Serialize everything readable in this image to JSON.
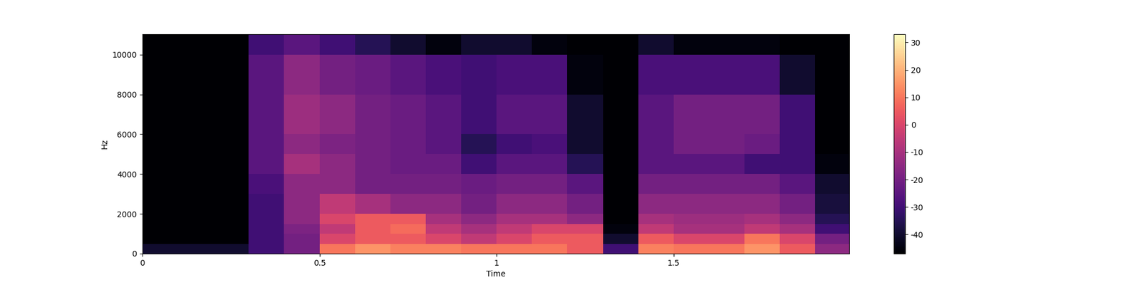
{
  "chart_data": {
    "type": "heatmap",
    "x_label": "Time",
    "y_label": "Hz",
    "xlim": [
      0,
      1.996
    ],
    "xticks": [
      0,
      0.5,
      1,
      1.5
    ],
    "ylim": [
      0,
      11025
    ],
    "yticks": [
      0,
      2000,
      4000,
      6000,
      8000,
      10000
    ],
    "time_edges": [
      0,
      0.1,
      0.2,
      0.3,
      0.4,
      0.5,
      0.6,
      0.7,
      0.8,
      0.9,
      1.0,
      1.1,
      1.2,
      1.3,
      1.4,
      1.5,
      1.6,
      1.7,
      1.8,
      1.9,
      1.996
    ],
    "freq_edges": [
      0,
      500,
      1000,
      1500,
      2000,
      3000,
      4000,
      5000,
      6000,
      8000,
      10000,
      11025
    ],
    "cells": [
      [
        -40,
        -40,
        -40,
        -30,
        -20,
        10,
        15,
        12,
        12,
        10,
        10,
        10,
        5,
        -30,
        12,
        10,
        10,
        15,
        5,
        -15
      ],
      [
        -47,
        -47,
        -47,
        -30,
        -20,
        0,
        5,
        5,
        0,
        -5,
        0,
        5,
        5,
        -40,
        5,
        0,
        0,
        10,
        0,
        -20
      ],
      [
        -47,
        -47,
        -47,
        -30,
        -18,
        -5,
        5,
        8,
        -5,
        -10,
        -5,
        0,
        0,
        -45,
        -5,
        -10,
        -10,
        -5,
        -10,
        -30
      ],
      [
        -47,
        -47,
        -47,
        -30,
        -15,
        0,
        5,
        5,
        -10,
        -15,
        -10,
        -10,
        -15,
        -47,
        -10,
        -12,
        -12,
        -10,
        -15,
        -35
      ],
      [
        -47,
        -47,
        -47,
        -30,
        -15,
        -5,
        -10,
        -15,
        -15,
        -20,
        -15,
        -15,
        -20,
        -47,
        -15,
        -15,
        -15,
        -15,
        -20,
        -38
      ],
      [
        -47,
        -47,
        -47,
        -28,
        -15,
        -15,
        -20,
        -20,
        -20,
        -22,
        -20,
        -20,
        -25,
        -47,
        -20,
        -20,
        -20,
        -20,
        -25,
        -40
      ],
      [
        -47,
        -47,
        -47,
        -25,
        -10,
        -15,
        -20,
        -22,
        -22,
        -30,
        -25,
        -25,
        -35,
        -47,
        -25,
        -25,
        -25,
        -30,
        -30,
        -45
      ],
      [
        -47,
        -47,
        -47,
        -25,
        -15,
        -18,
        -20,
        -22,
        -25,
        -35,
        -30,
        -28,
        -40,
        -47,
        -25,
        -20,
        -20,
        -22,
        -30,
        -47
      ],
      [
        -47,
        -47,
        -47,
        -25,
        -12,
        -15,
        -20,
        -22,
        -25,
        -30,
        -25,
        -25,
        -40,
        -47,
        -25,
        -20,
        -20,
        -20,
        -30,
        -47
      ],
      [
        -47,
        -47,
        -47,
        -25,
        -15,
        -20,
        -22,
        -25,
        -28,
        -30,
        -28,
        -28,
        -45,
        -47,
        -28,
        -28,
        -28,
        -28,
        -40,
        -47
      ],
      [
        -47,
        -47,
        -47,
        -30,
        -25,
        -30,
        -35,
        -40,
        -45,
        -40,
        -40,
        -45,
        -47,
        -47,
        -40,
        -45,
        -45,
        -45,
        -47,
        -47
      ]
    ],
    "colorbar": {
      "range": [
        -47,
        33
      ],
      "ticks": [
        -40,
        -30,
        -20,
        -10,
        0,
        10,
        20,
        30
      ]
    }
  }
}
